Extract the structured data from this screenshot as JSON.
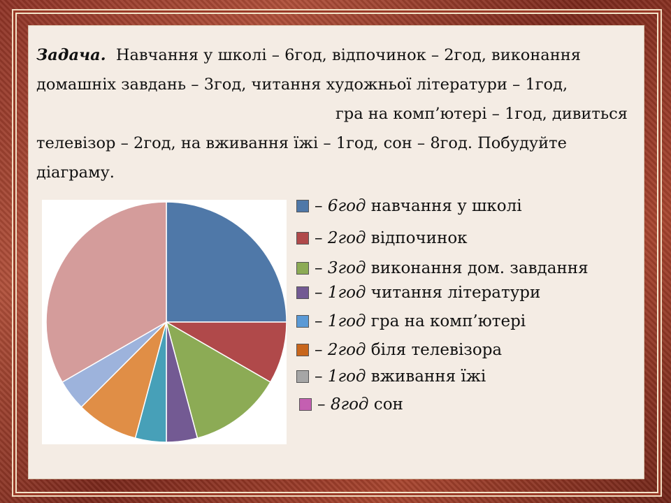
{
  "task": {
    "heading": "Задача.",
    "lines": [
      "Навчання у школі – 6год, відпочинок – 2год, виконання",
      "домашніх завдань – 3год, читання художньої літератури – 1год,",
      "гра на комп’ютері – 1год, дивиться",
      "телевізор – 2год, на вживання їжі – 1год, сон – 8год. Побудуйте",
      "діаграму."
    ]
  },
  "chart_data": {
    "type": "pie",
    "title": "",
    "slices": [
      {
        "value": 6,
        "color": "#4f78a8",
        "start_angle_deg": 0
      },
      {
        "value": 2,
        "color": "#b0494a"
      },
      {
        "value": 3,
        "color": "#8cab55"
      },
      {
        "value": 1,
        "color": "#735a93"
      },
      {
        "value": 1,
        "color": "#47a0b8"
      },
      {
        "value": 2,
        "color": "#e08e46"
      },
      {
        "value": 1,
        "color": "#9db3dc"
      },
      {
        "value": 8,
        "color": "#d49c9b"
      }
    ],
    "legend": {
      "placement": "right",
      "entries": [
        {
          "amount": "6год",
          "label": "навчання у школі",
          "color": "#4f78a8"
        },
        {
          "amount": "2год",
          "label": "відпочинок",
          "color": "#b0494a"
        },
        {
          "amount": "3год",
          "label": "виконання дом. завдання",
          "color": "#8cab55"
        },
        {
          "amount": "1год",
          "label": "читання літератури",
          "color": "#735a93"
        },
        {
          "amount": "1год",
          "label": "гра на комп’ютері",
          "color": "#5b9ad6"
        },
        {
          "amount": "2год",
          "label": "біля телевізора",
          "color": "#c8661c"
        },
        {
          "amount": "1год",
          "label": "вживання їжі",
          "color": "#a6a6a6"
        },
        {
          "amount": "8год",
          "label": "сон",
          "color": "#c45fb1"
        }
      ]
    }
  }
}
